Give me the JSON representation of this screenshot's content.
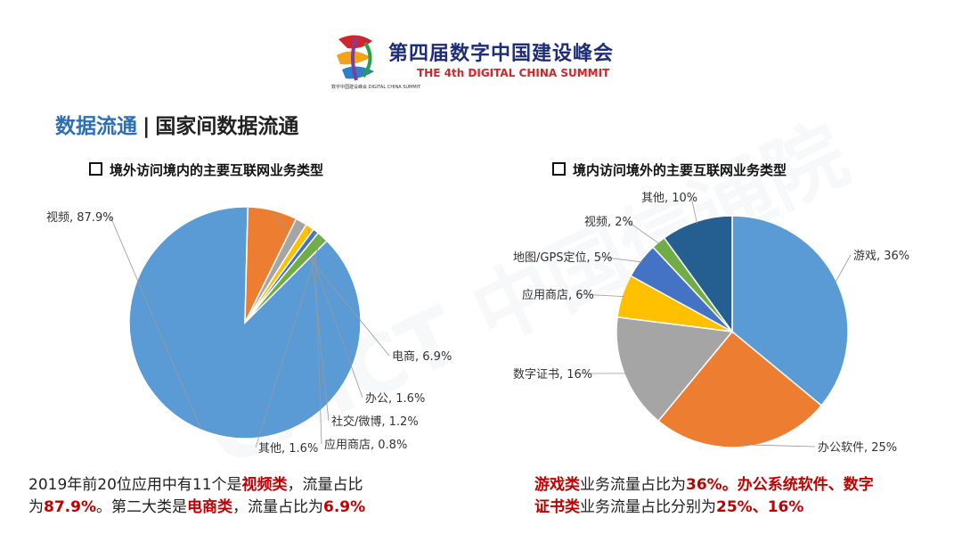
{
  "header": {
    "logo_text": "数",
    "logo_sub": "数字中国建设峰会 DIGITAL CHINA SUMMIT",
    "summit_cn": "第四届数字中国建设峰会",
    "summit_en": "THE 4th DIGITAL CHINA SUMMIT"
  },
  "section": {
    "title_main": "数据流通",
    "separator": "|",
    "title_sub": "国家间数据流通"
  },
  "watermark": "CAICT 中国信通院",
  "chart_data": [
    {
      "type": "pie",
      "title": "境外访问境内的主要互联网业务类型",
      "slices": [
        {
          "label": "视频, 87.9%",
          "value": 87.9,
          "color": "#5b9bd5"
        },
        {
          "label": "电商, 6.9%",
          "value": 6.9,
          "color": "#ed7d31"
        },
        {
          "label": "办公, 1.6%",
          "value": 1.6,
          "color": "#a5a5a5"
        },
        {
          "label": "社交/微博, 1.2%",
          "value": 1.2,
          "color": "#ffc000"
        },
        {
          "label": "应用商店, 0.8%",
          "value": 0.8,
          "color": "#4472c4"
        },
        {
          "label": "其他, 1.6%",
          "value": 1.6,
          "color": "#70ad47"
        }
      ]
    },
    {
      "type": "pie",
      "title": "境内访问境外的主要互联网业务类型",
      "slices": [
        {
          "label": "游戏, 36%",
          "value": 36,
          "color": "#5b9bd5"
        },
        {
          "label": "办公软件, 25%",
          "value": 25,
          "color": "#ed7d31"
        },
        {
          "label": "数字证书, 16%",
          "value": 16,
          "color": "#a5a5a5"
        },
        {
          "label": "应用商店, 6%",
          "value": 6,
          "color": "#ffc000"
        },
        {
          "label": "地图/GPS定位, 5%",
          "value": 5,
          "color": "#4472c4"
        },
        {
          "label": "视频, 2%",
          "value": 2,
          "color": "#70ad47"
        },
        {
          "label": "其他, 10%",
          "value": 10,
          "color": "#255e91"
        }
      ]
    }
  ],
  "notes": {
    "left": {
      "a": "2019年前20位应用中有11个是",
      "b": "视频类",
      "c": "，流量占比",
      "d": "为",
      "e": "87.9%",
      "f": "。第二大类是",
      "g": "电商类",
      "h": "，流量占比为",
      "i": "6.9%"
    },
    "right": {
      "a": "游戏类",
      "b": "业务流量占比为",
      "c": "36%",
      "d": "。",
      "e": "办公系统软件、数字",
      "f": "证书类",
      "g": "业务流量占比分别为",
      "h": "25%、16%"
    }
  }
}
